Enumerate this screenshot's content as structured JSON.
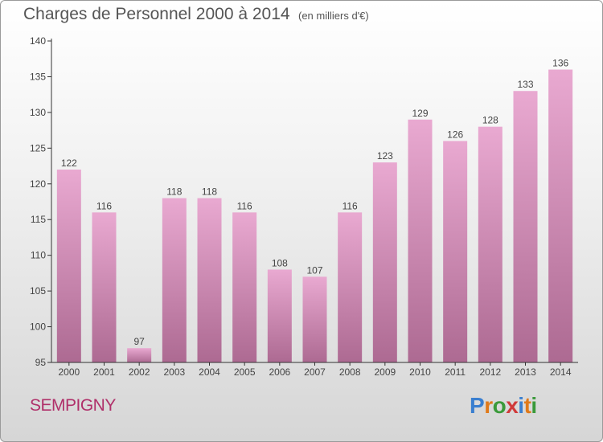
{
  "header": {
    "title": "Charges de Personnel 2000 à 2014",
    "subtitle": "(en milliers d'€)"
  },
  "footer": {
    "commune": "SEMPIGNY",
    "logo_text": "Proxiti",
    "logo_colors": [
      "#3a7fd0",
      "#e07a1a",
      "#3a9a3a",
      "#d03a3a",
      "#3a7fd0",
      "#e07a1a",
      "#3a9a3a"
    ]
  },
  "colors": {
    "bar_top": "#e9a9d1",
    "bar_bottom": "#ad6a92",
    "title_text": "#555555",
    "commune_text": "#b0306a"
  },
  "chart_data": {
    "type": "bar",
    "title": "Charges de Personnel 2000 à 2014",
    "subtitle": "(en milliers d'€)",
    "categories": [
      "2000",
      "2001",
      "2002",
      "2003",
      "2004",
      "2005",
      "2006",
      "2007",
      "2008",
      "2009",
      "2010",
      "2011",
      "2012",
      "2013",
      "2014"
    ],
    "values": [
      122,
      116,
      97,
      118,
      118,
      116,
      108,
      107,
      116,
      123,
      129,
      126,
      128,
      133,
      136
    ],
    "ylim": [
      95,
      140
    ],
    "yticks": [
      95,
      100,
      105,
      110,
      115,
      120,
      125,
      130,
      135,
      140
    ],
    "xlabel": "",
    "ylabel": "",
    "grid": false,
    "legend": "none"
  }
}
